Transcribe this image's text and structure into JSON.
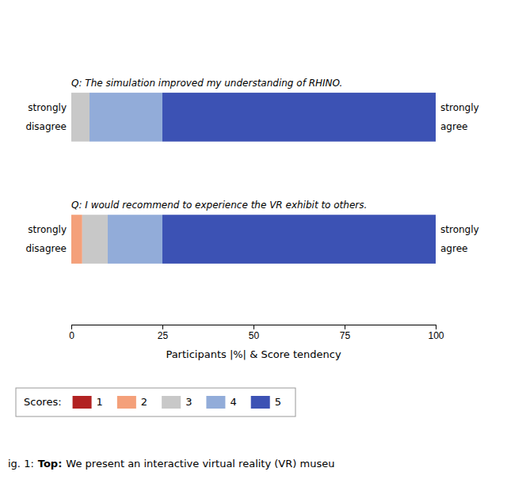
{
  "chart_data": {
    "type": "bar",
    "orientation": "horizontal",
    "stacked": true,
    "categories": [
      "Q: The simulation improved my understanding of RHINO.",
      "Q: I would recommend to experience the VR exhibit to others."
    ],
    "series": [
      {
        "name": "1",
        "color": "#b22222",
        "values": [
          0,
          0
        ]
      },
      {
        "name": "2",
        "color": "#f4a07a",
        "values": [
          0,
          3
        ]
      },
      {
        "name": "3",
        "color": "#c8c8c8",
        "values": [
          5,
          7
        ]
      },
      {
        "name": "4",
        "color": "#92acd9",
        "values": [
          20,
          15
        ]
      },
      {
        "name": "5",
        "color": "#3c52b4",
        "values": [
          75,
          75
        ]
      }
    ],
    "xlabel": "Participants |%| & Score tendency",
    "xlim": [
      0,
      100
    ],
    "xticks": [
      0,
      25,
      50,
      75,
      100
    ],
    "grid": false,
    "legend": "bottom",
    "legend_title": "Scores:",
    "annotations": [
      "strongly",
      "disagree",
      "strongly",
      "agree",
      "strongly",
      "disagree",
      "strongly",
      "agree",
      "ig. 1:",
      "Top:",
      "We present an interactive virtual reality (VR) museu"
    ]
  }
}
